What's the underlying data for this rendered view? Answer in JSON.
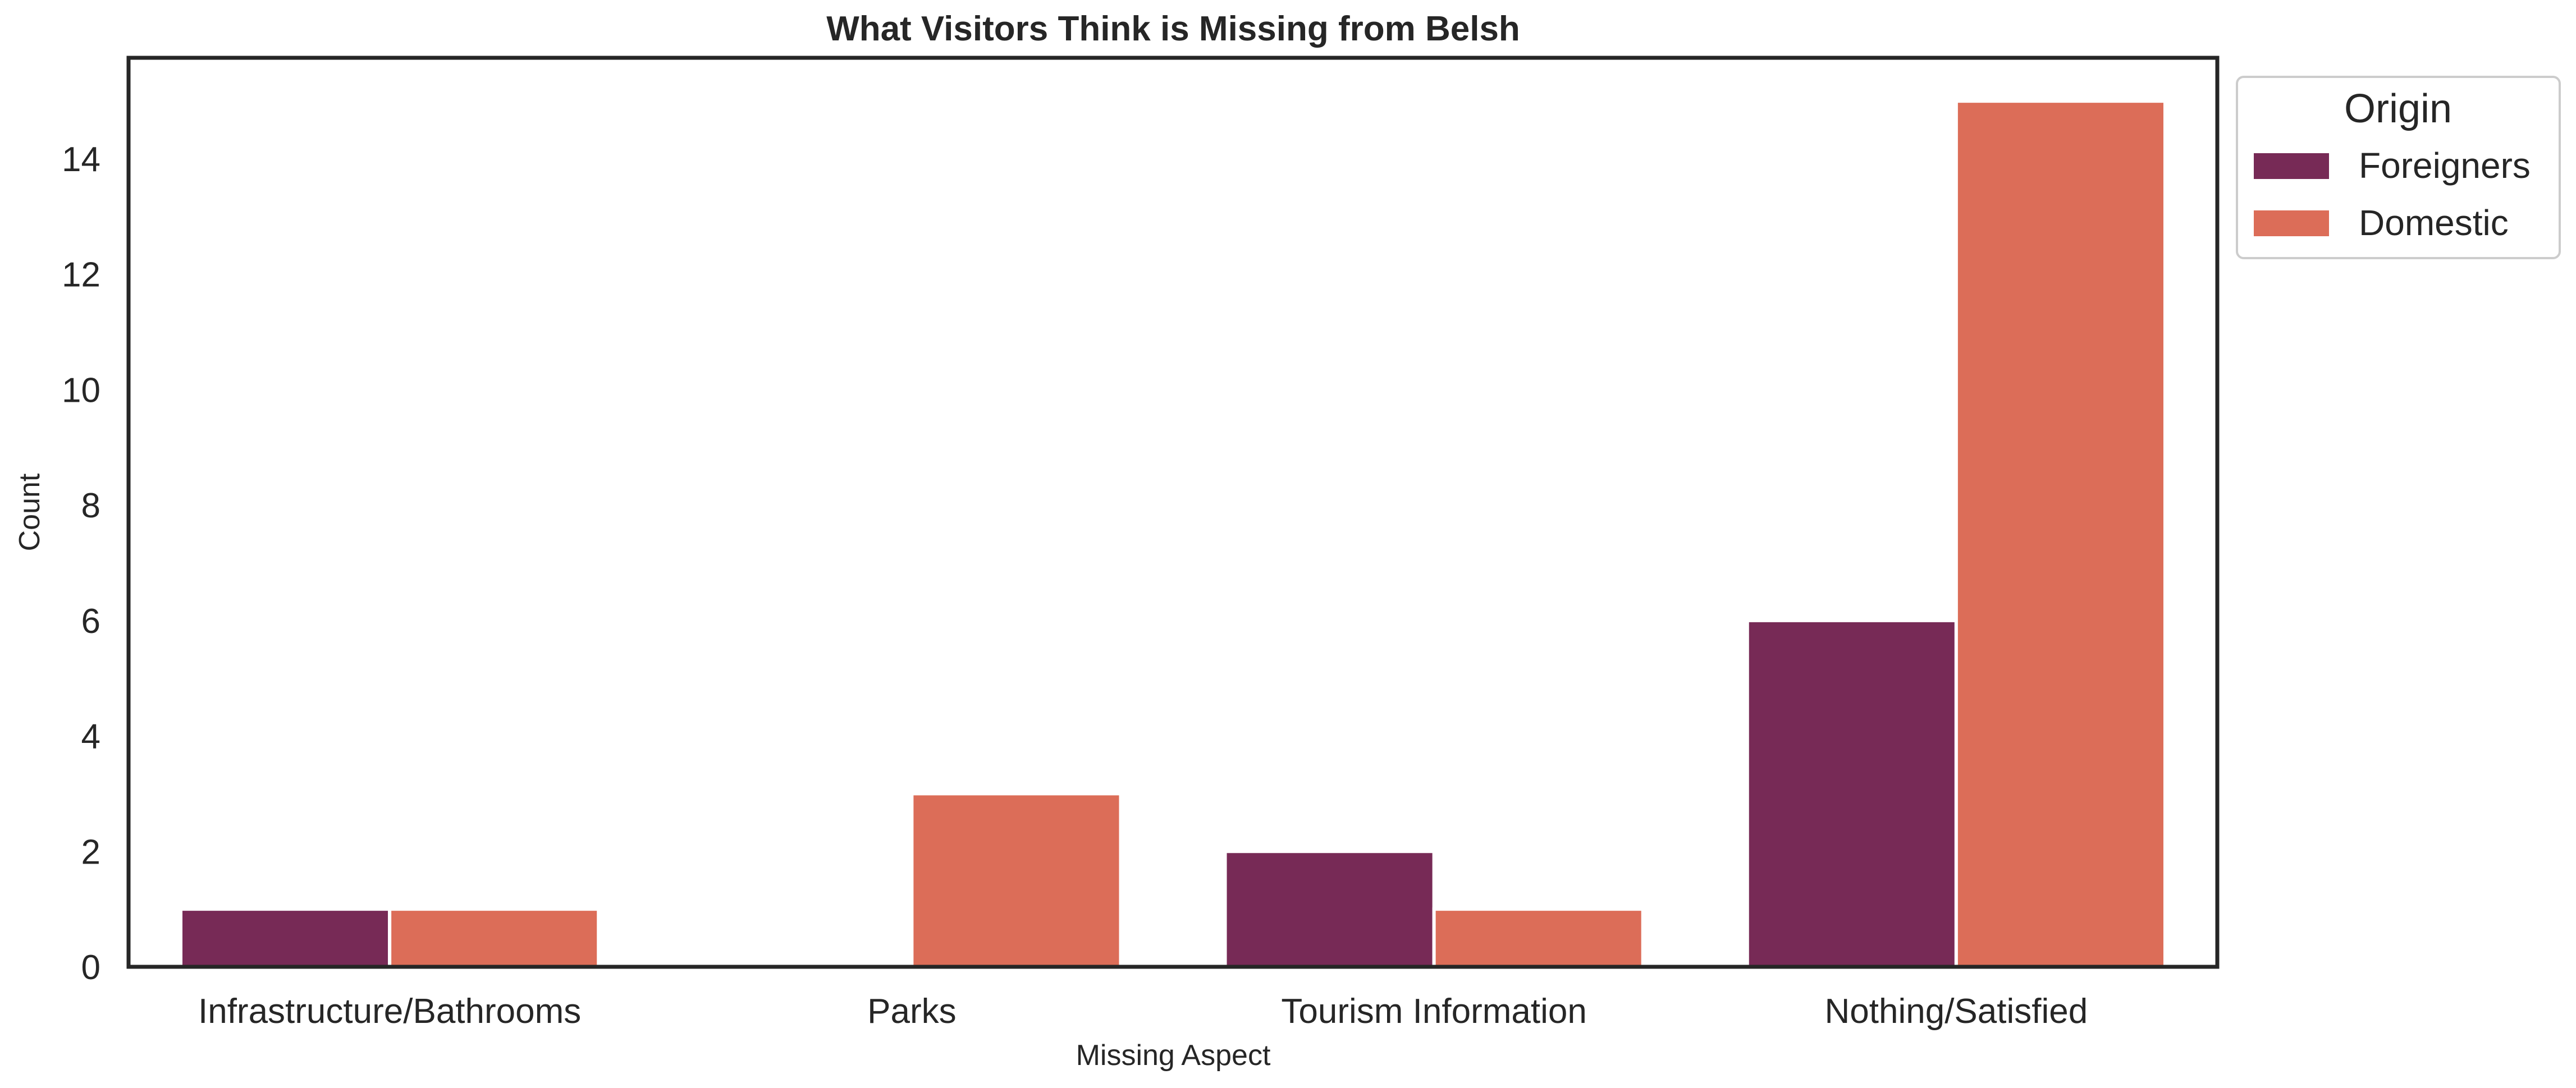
{
  "chart_data": {
    "type": "bar",
    "title": "What Visitors Think is Missing from Belsh",
    "xlabel": "Missing Aspect",
    "ylabel": "Count",
    "categories": [
      "Infrastructure/Bathrooms",
      "Parks",
      "Tourism Information",
      "Nothing/Satisfied"
    ],
    "series": [
      {
        "name": "Foreigners",
        "values": [
          1,
          0,
          2,
          6
        ],
        "color": "#772a56"
      },
      {
        "name": "Domestic",
        "values": [
          1,
          3,
          1,
          15
        ],
        "color": "#dc6d58"
      }
    ],
    "ylim": [
      0,
      15.75
    ],
    "yticks": [
      "0",
      "2",
      "4",
      "6",
      "8",
      "10",
      "12",
      "14"
    ],
    "grid": false,
    "legend": {
      "title": "Origin",
      "placement": "outside top-right"
    }
  }
}
